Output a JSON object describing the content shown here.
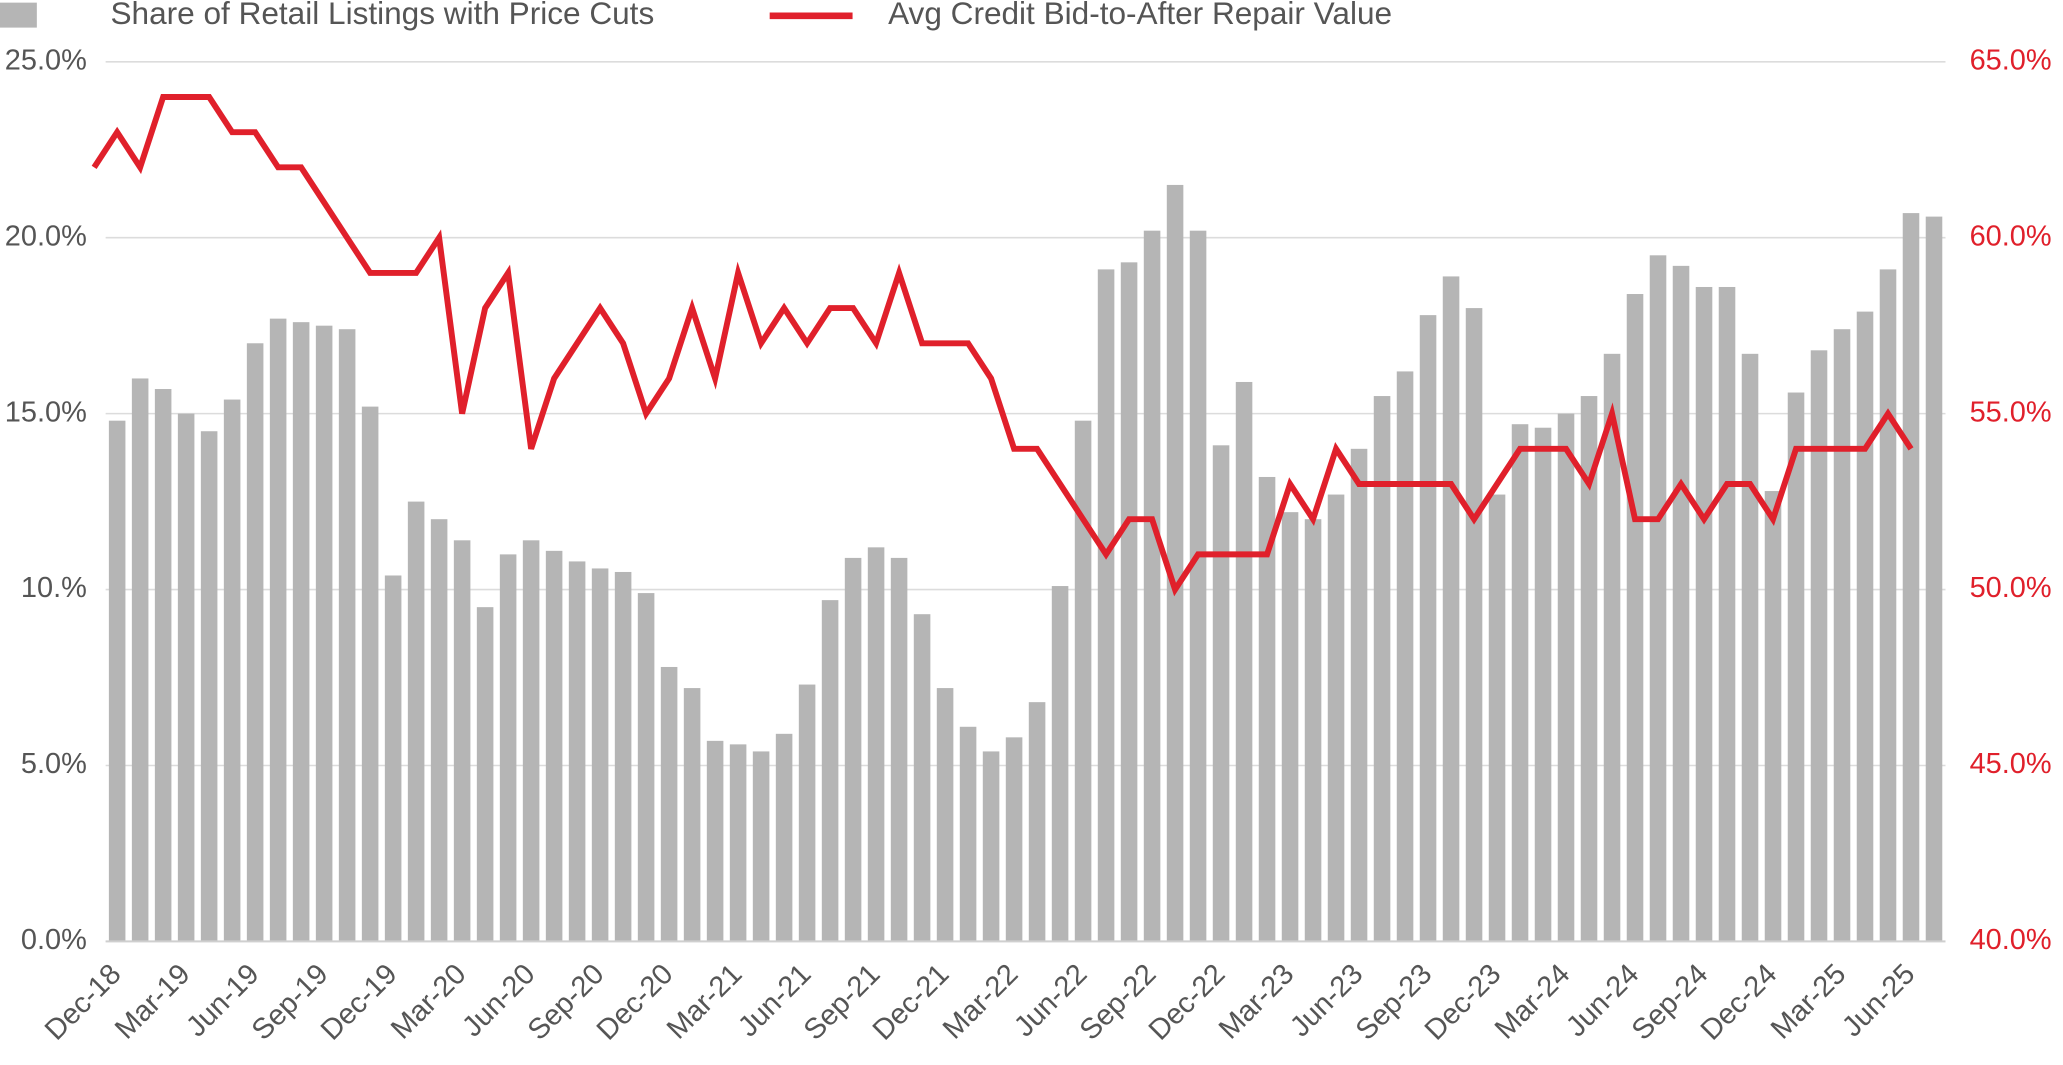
{
  "chart_data": {
    "type": "bar",
    "categories": [
      "Dec-18",
      null,
      null,
      "Mar-19",
      null,
      null,
      "Jun-19",
      null,
      null,
      "Sep-19",
      null,
      null,
      "Dec-19",
      null,
      null,
      "Mar-20",
      null,
      null,
      "Jun-20",
      null,
      null,
      "Sep-20",
      null,
      null,
      "Dec-20",
      null,
      null,
      "Mar-21",
      null,
      null,
      "Jun-21",
      null,
      null,
      "Sep-21",
      null,
      null,
      "Dec-21",
      null,
      null,
      "Mar-22",
      null,
      null,
      "Jun-22",
      null,
      null,
      "Sep-22",
      null,
      null,
      "Dec-22",
      null,
      null,
      "Mar-23",
      null,
      null,
      "Jun-23",
      null,
      null,
      "Sep-23",
      null,
      null,
      "Dec-23",
      null,
      null,
      "Mar-24",
      null,
      null,
      "Jun-24",
      null,
      null,
      "Sep-24",
      null,
      null,
      "Dec-24",
      null,
      null,
      "Mar-25",
      null,
      null,
      "Jun-25",
      null
    ],
    "series": [
      {
        "name": "Share of Retail Listings with Price Cuts",
        "type": "bar",
        "color": "#b5b5b5",
        "values": [
          14.8,
          16.0,
          15.7,
          15.0,
          14.5,
          15.4,
          17.0,
          17.7,
          17.6,
          17.5,
          17.4,
          15.2,
          10.4,
          12.5,
          12.0,
          11.4,
          9.5,
          11.0,
          11.4,
          11.1,
          10.8,
          10.6,
          10.5,
          9.9,
          7.8,
          7.2,
          5.7,
          5.6,
          5.4,
          5.9,
          7.3,
          9.7,
          10.9,
          11.2,
          10.9,
          9.3,
          7.2,
          6.1,
          5.4,
          5.8,
          6.8,
          10.1,
          14.8,
          19.1,
          19.3,
          20.2,
          21.5,
          20.2,
          14.1,
          15.9,
          13.2,
          12.2,
          12.0,
          12.7,
          14.0,
          15.5,
          16.2,
          17.8,
          18.9,
          18.0,
          12.7,
          14.7,
          14.6,
          15.0,
          15.5,
          16.7,
          18.4,
          19.5,
          19.2,
          18.6,
          18.6,
          16.7,
          12.8,
          15.6,
          16.8,
          17.4,
          17.9,
          19.1,
          20.7,
          20.6
        ]
      },
      {
        "name": "Avg Credit Bid-to-After Repair Value",
        "type": "line",
        "color": "#e0202b",
        "axis": "y2",
        "values": [
          62,
          63,
          62,
          64,
          64,
          64,
          63,
          63,
          62,
          62,
          61,
          60,
          59,
          59,
          59,
          60,
          55,
          58,
          59,
          54,
          56,
          57,
          58,
          57,
          55,
          56,
          58,
          56,
          59,
          57,
          58,
          57,
          58,
          58,
          57,
          59,
          57,
          57,
          57,
          56,
          54,
          54,
          53,
          52,
          51,
          52,
          52,
          50,
          51,
          51,
          51,
          51,
          53,
          52,
          54,
          53,
          53,
          53,
          53,
          53,
          52,
          53,
          54,
          54,
          54,
          53,
          55,
          52,
          52,
          53,
          52,
          53,
          53,
          52,
          54,
          54,
          54,
          54,
          55,
          54
        ]
      }
    ],
    "ylim": [
      0,
      25
    ],
    "yticks": [
      {
        "value": 0,
        "label": "0.0%"
      },
      {
        "value": 5,
        "label": "5.0%"
      },
      {
        "value": 10,
        "label": "10.%"
      },
      {
        "value": 15,
        "label": "15.0%"
      },
      {
        "value": 20,
        "label": "20.0%"
      },
      {
        "value": 25,
        "label": "25.0%"
      }
    ],
    "y2lim": [
      40,
      65
    ],
    "y2ticks": [
      {
        "value": 40,
        "label": "40.0%"
      },
      {
        "value": 45,
        "label": "45.0%"
      },
      {
        "value": 50,
        "label": "50.0%"
      },
      {
        "value": 55,
        "label": "55.0%"
      },
      {
        "value": 60,
        "label": "60.0%"
      },
      {
        "value": 65,
        "label": "65.0%"
      }
    ],
    "grid": true,
    "legend": "top"
  }
}
